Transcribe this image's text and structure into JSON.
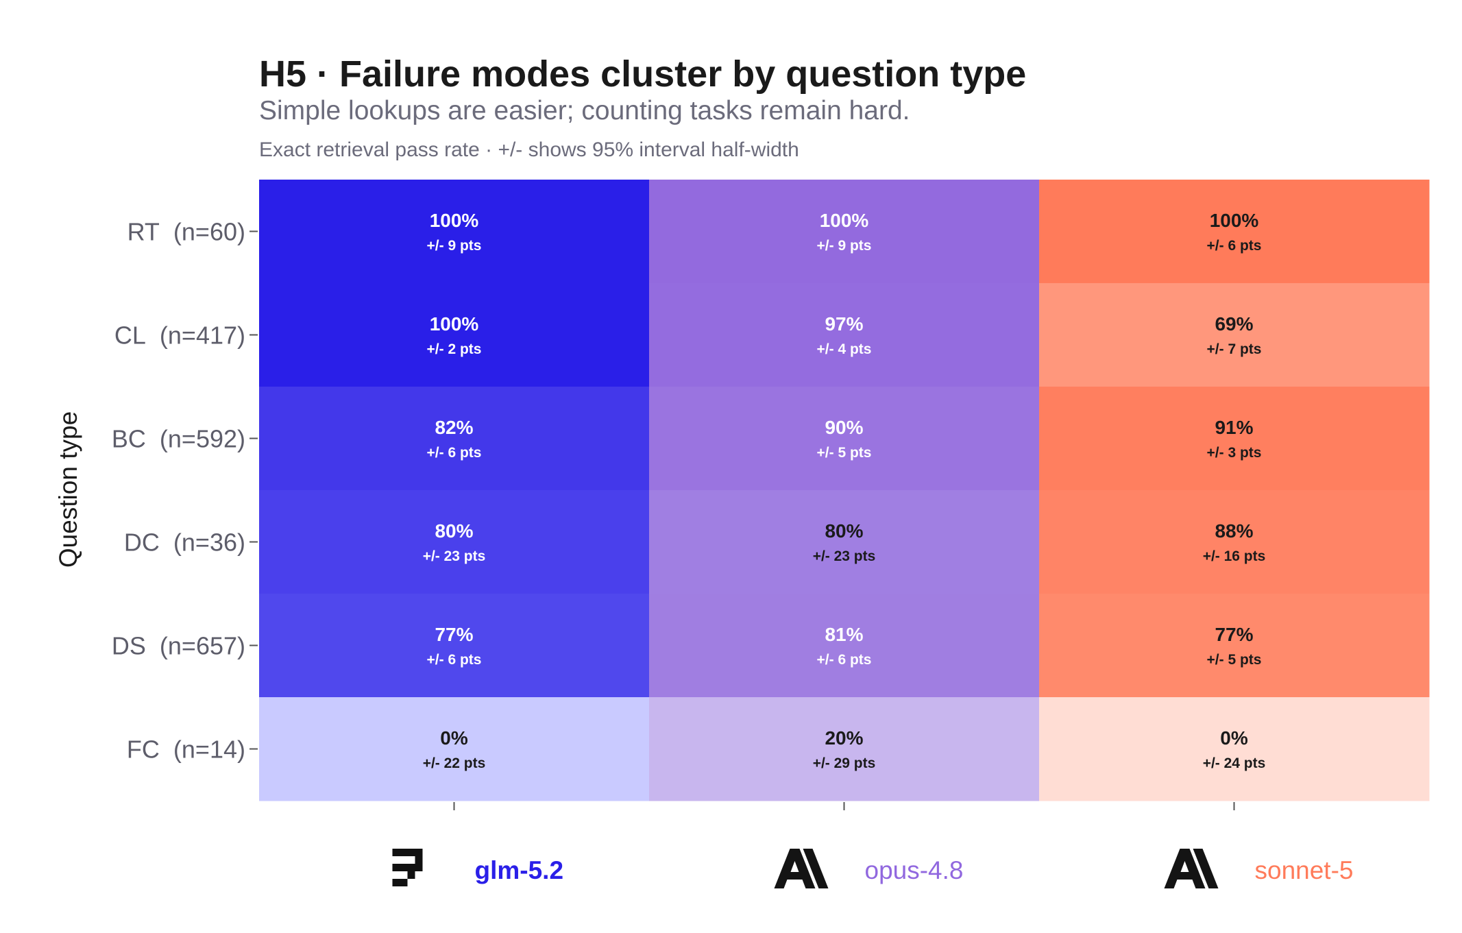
{
  "header": {
    "title": "H5 · Failure modes cluster by question type",
    "subtitle": "Simple lookups are easier; counting tasks remain hard.",
    "note": "Exact retrieval pass rate · +/- shows 95% interval half-width"
  },
  "chart_data": {
    "type": "heatmap",
    "title": "H5 · Failure modes cluster by question type",
    "subtitle": "Simple lookups are easier; counting tasks remain hard.",
    "ylabel": "Question type",
    "xlabel": "",
    "rows": [
      {
        "code": "RT",
        "n": "(n=60)"
      },
      {
        "code": "CL",
        "n": "(n=417)"
      },
      {
        "code": "BC",
        "n": "(n=592)"
      },
      {
        "code": "DC",
        "n": "(n=36)"
      },
      {
        "code": "DS",
        "n": "(n=657)"
      },
      {
        "code": "FC",
        "n": "(n=14)"
      }
    ],
    "series": [
      {
        "name": "glm-5.2",
        "logo": "glm-logo-icon",
        "color": "#2a1fe8",
        "values": [
          100,
          100,
          82,
          80,
          77,
          0
        ],
        "value_labels": [
          "100%",
          "100%",
          "82%",
          "80%",
          "77%",
          "0%"
        ],
        "ci_labels": [
          "+/- 9 pts",
          "+/- 2 pts",
          "+/- 6 pts",
          "+/- 23 pts",
          "+/- 6 pts",
          "+/- 22 pts"
        ],
        "cell_colors": [
          "#2a1fe8",
          "#2a1fe8",
          "#4338ea",
          "#4a40ec",
          "#5048ed",
          "#c9caff"
        ]
      },
      {
        "name": "opus-4.8",
        "logo": "anthropic-logo-icon",
        "color": "#9168df",
        "values": [
          100,
          97,
          90,
          80,
          81,
          20
        ],
        "value_labels": [
          "100%",
          "97%",
          "90%",
          "80%",
          "81%",
          "20%"
        ],
        "ci_labels": [
          "+/- 9 pts",
          "+/- 4 pts",
          "+/- 5 pts",
          "+/- 23 pts",
          "+/- 6 pts",
          "+/- 29 pts"
        ],
        "cell_colors": [
          "#936ade",
          "#946cdf",
          "#9a74e0",
          "#a07fe2",
          "#a07ee1",
          "#c8b6ee"
        ]
      },
      {
        "name": "sonnet-5",
        "logo": "anthropic-logo-icon",
        "color": "#ff7b5a",
        "values": [
          100,
          69,
          91,
          88,
          77,
          0
        ],
        "value_labels": [
          "100%",
          "69%",
          "91%",
          "88%",
          "77%",
          "0%"
        ],
        "ci_labels": [
          "+/- 6 pts",
          "+/- 7 pts",
          "+/- 3 pts",
          "+/- 16 pts",
          "+/- 5 pts",
          "+/- 24 pts"
        ],
        "cell_colors": [
          "#ff7b5a",
          "#ff977c",
          "#ff7f5f",
          "#ff8466",
          "#ff8a6c",
          "#ffddd4"
        ]
      }
    ],
    "text_colors": {
      "light": "#ffffff",
      "dark": "#1a1a1a"
    },
    "grid": false,
    "legend": "bottom"
  }
}
